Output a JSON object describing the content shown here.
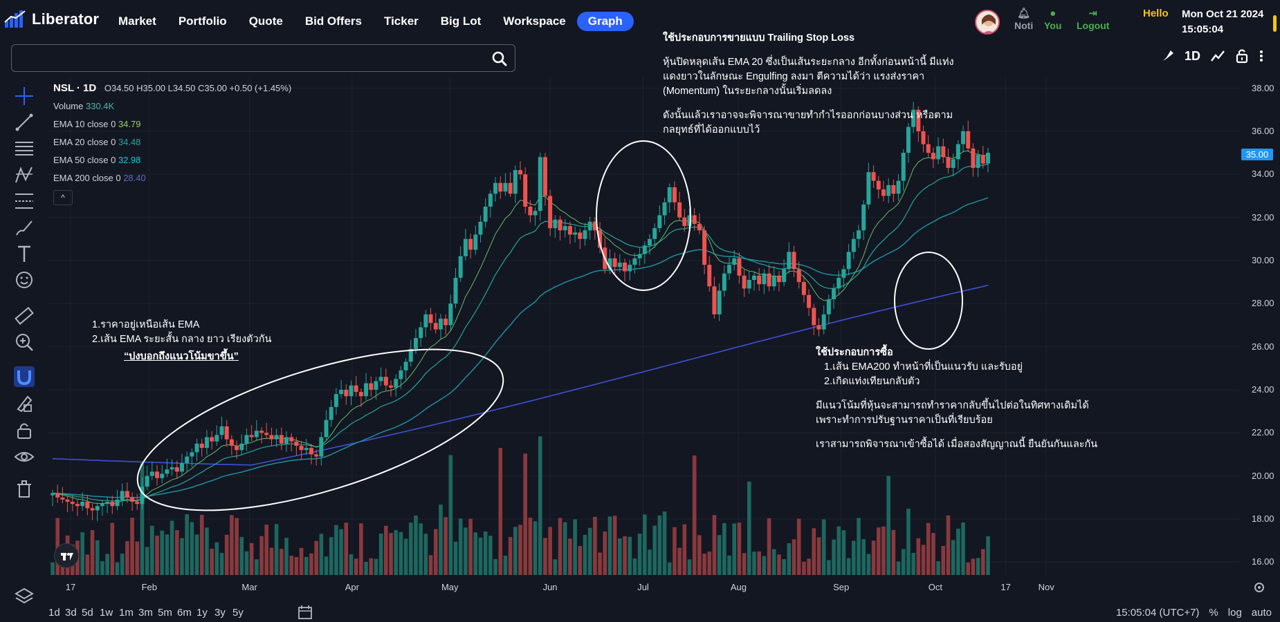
{
  "app": {
    "name": "Liberator"
  },
  "nav": [
    "Market",
    "Portfolio",
    "Quote",
    "Bid Offers",
    "Ticker",
    "Big Lot",
    "Workspace",
    "Graph"
  ],
  "nav_active": "Graph",
  "header": {
    "noti_label": "Noti",
    "you_label": "You",
    "logout_label": "Logout",
    "hello": "Hello",
    "date": "Mon Oct 21 2024",
    "time": "15:05:04"
  },
  "search": {
    "value": "",
    "placeholder": ""
  },
  "chart_toolbar": {
    "interval": "1D"
  },
  "legend": {
    "symbol": "NSL · 1D",
    "ohlc": "O34.50 H35.00 L34.50 C35.00 +0.50 (+1.45%)",
    "volume_label": "Volume",
    "volume_value": "330.4K",
    "ema10_label": "EMA 10 close 0",
    "ema10_value": "34.79",
    "ema20_label": "EMA 20 close 0",
    "ema20_value": "34.48",
    "ema50_label": "EMA 50 close 0",
    "ema50_value": "32.98",
    "ema200_label": "EMA 200 close 0",
    "ema200_value": "28.40",
    "collapse": "^"
  },
  "annotations": {
    "sell_title": "ใช้ประกอบการขายแบบ Trailing Stop Loss",
    "sell_l1": "หุ้นปิดหลุดเส้น EMA 20 ซึ่งเป็นเส้นระยะกลาง อีกทั้งก่อนหน้านี้ มีแท่ง",
    "sell_l2": "แดงยาวในลักษณะ Engulfing ลงมา ตีความได้ว่า แรงส่งราคา",
    "sell_l3": "(Momentum) ในระยะกลางนั้นเริ่มลดลง",
    "sell_l4": "ดังนั้นแล้วเราอาจจะพิจารณาขายทำกำไรออกก่อนบางส่วน หรือตาม",
    "sell_l5": "กลยุทธ์ที่ได้ออกแบบไว้",
    "trend_l1": "1.ราคาอยู่เหนือเส้น EMA",
    "trend_l2": "2.เส้น EMA ระยะสั้น กลาง ยาว เรียงตัวกัน",
    "trend_l3": "“บ่งบอกถึงแนวโน้มขาขึ้น”",
    "buy_title": "ใช้ประกอบการซื้อ",
    "buy_l1": "1.เส้น EMA200 ทำหน้าที่เป็นแนวรับ และรับอยู่",
    "buy_l2": "2.เกิดแท่งเทียนกลับตัว",
    "buy_l3": "มีแนวโน้มที่หุ้นจะสามารถทำราคากลับขึ้นไปต่อในทิศทางเดิมได้",
    "buy_l4": "เพราะทำการปรับฐานราคาเป็นที่เรียบร้อย",
    "buy_l5": "เราสามารถพิจารณาเข้าซื้อได้ เมื่อสองสัญญาณนี้ ยืนยันกันและกัน"
  },
  "colors": {
    "up": "#26a69a",
    "down": "#ef5350",
    "ema10": "#66bb6a",
    "ema20": "#26a69a",
    "ema50": "#26a69a",
    "ema200": "#3f51d8",
    "accent": "#2962ff"
  },
  "chart_data": {
    "type": "candlestick",
    "symbol": "NSL",
    "interval": "1D",
    "y_ticks": [
      "38.00",
      "36.00",
      "34.00",
      "32.00",
      "30.00",
      "28.00",
      "26.00",
      "24.00",
      "22.00",
      "20.00",
      "18.00",
      "16.00"
    ],
    "ylim": [
      15.4,
      38.5
    ],
    "last_price": "35.00",
    "x_ticks": [
      "17",
      "Feb",
      "Mar",
      "Apr",
      "May",
      "Jun",
      "Jul",
      "Aug",
      "Sep",
      "Oct",
      "17",
      "Nov"
    ],
    "close": [
      19.2,
      19.0,
      18.9,
      18.8,
      18.7,
      18.6,
      18.8,
      18.5,
      18.4,
      18.6,
      18.7,
      18.8,
      18.6,
      18.9,
      19.3,
      19.0,
      18.8,
      18.7,
      19.5,
      20.0,
      20.2,
      19.9,
      20.1,
      20.3,
      20.4,
      20.2,
      20.6,
      20.9,
      21.1,
      21.5,
      21.3,
      21.8,
      21.6,
      21.9,
      22.3,
      21.7,
      21.4,
      21.2,
      21.5,
      21.9,
      21.8,
      22.1,
      22.0,
      21.9,
      21.7,
      21.9,
      21.5,
      21.8,
      21.6,
      21.4,
      21.2,
      21.3,
      21.0,
      20.9,
      21.8,
      22.6,
      23.2,
      23.8,
      24.0,
      23.7,
      24.2,
      23.9,
      23.7,
      24.3,
      24.0,
      24.4,
      24.6,
      24.2,
      24.1,
      24.5,
      24.9,
      25.3,
      25.9,
      26.4,
      26.9,
      27.5,
      27.1,
      26.8,
      27.3,
      27.0,
      28.0,
      29.2,
      30.2,
      31.0,
      30.5,
      31.2,
      31.8,
      32.5,
      33.1,
      33.6,
      33.2,
      33.6,
      33.1,
      34.2,
      34.0,
      32.5,
      32.1,
      32.3,
      34.8,
      33.0,
      31.5,
      31.9,
      31.4,
      31.6,
      31.2,
      31.3,
      31.0,
      31.4,
      31.8,
      31.4,
      30.6,
      29.6,
      30.1,
      29.7,
      29.9,
      29.5,
      29.8,
      30.1,
      30.3,
      30.7,
      31.0,
      31.5,
      32.1,
      32.7,
      33.4,
      32.7,
      32.0,
      31.6,
      32.1,
      31.7,
      31.4,
      29.8,
      28.8,
      27.5,
      28.6,
      29.4,
      29.8,
      30.1,
      29.3,
      28.7,
      29.1,
      29.3,
      28.9,
      29.4,
      28.8,
      29.3,
      29.0,
      29.6,
      30.4,
      29.6,
      29.0,
      28.4,
      27.8,
      27.0,
      26.8,
      27.5,
      28.2,
      28.7,
      29.2,
      29.6,
      30.4,
      31.0,
      31.4,
      32.6,
      34.1,
      33.7,
      33.3,
      33.0,
      33.5,
      33.1,
      33.7,
      35.0,
      36.2,
      37.0,
      36.0,
      35.4,
      35.0,
      34.7,
      35.3,
      34.8,
      34.3,
      34.7,
      35.4,
      36.0,
      35.2,
      34.3,
      34.9,
      34.5,
      35.0
    ],
    "emas": {
      "ema10_last": 34.79,
      "ema20_last": 34.48,
      "ema50_last": 32.98,
      "ema200_last": 28.4
    }
  },
  "axis": {
    "time_label": "15:05:04 (UTC+7)",
    "pct": "%",
    "log": "log",
    "auto": "auto"
  },
  "ranges": [
    "1d",
    "3d",
    "5d",
    "1w",
    "1m",
    "3m",
    "5m",
    "6m",
    "1y",
    "3y",
    "5y"
  ]
}
